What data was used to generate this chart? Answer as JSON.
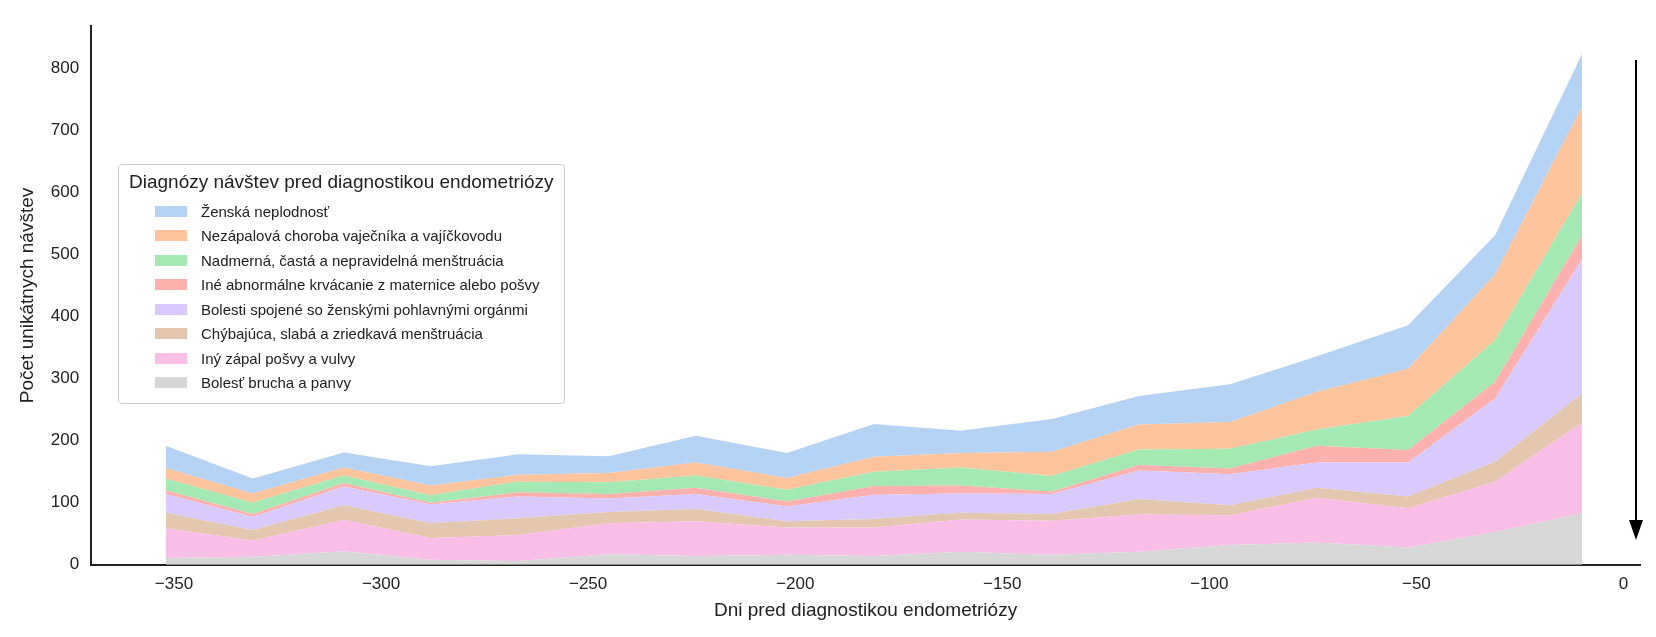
{
  "chart_data": {
    "type": "area",
    "stacked": true,
    "xlabel": "Dni pred diagnostikou endometriózy",
    "ylabel": "Počet unikátnych návštev",
    "legend_title": "Diagnózy návštev pred diagnostikou endometriózy",
    "legend": "left",
    "grid": false,
    "x": [
      -352,
      -331,
      -309,
      -288,
      -267,
      -245,
      -224,
      -202,
      -181,
      -160,
      -138,
      -117,
      -95,
      -74,
      -52,
      -31,
      -10
    ],
    "xlim": [
      -370,
      4
    ],
    "xticks": [
      -350,
      -300,
      -250,
      -200,
      -150,
      -100,
      -50,
      0
    ],
    "ylim": [
      0,
      868
    ],
    "yticks": [
      0,
      100,
      200,
      300,
      400,
      500,
      600,
      700,
      800
    ],
    "series": [
      {
        "name": "Bolesť brucha a panvy",
        "color": "#d7d7d7",
        "values": [
          11,
          13,
          22,
          8,
          6,
          17,
          14,
          16,
          14,
          21,
          16,
          21,
          32,
          36,
          28,
          53,
          83
        ]
      },
      {
        "name": "Iný zápal pošvy a vulvy",
        "color": "#f9bee8",
        "values": [
          48,
          26,
          50,
          35,
          42,
          50,
          56,
          44,
          46,
          52,
          55,
          60,
          48,
          72,
          63,
          81,
          146
        ]
      },
      {
        "name": "Chýbajúca, slabá a zriedkavá menštruácia",
        "color": "#e2c6ad",
        "values": [
          25,
          17,
          24,
          24,
          27,
          18,
          20,
          10,
          14,
          11,
          11,
          25,
          16,
          16,
          19,
          32,
          47
        ]
      },
      {
        "name": "Bolesti spojené so ženskými pohlavnými orgánmi",
        "color": "#d9c9fd",
        "values": [
          30,
          21,
          30,
          30,
          35,
          22,
          24,
          24,
          39,
          31,
          32,
          46,
          50,
          41,
          55,
          102,
          217
        ]
      },
      {
        "name": "Iné abnormálne krvácanie z maternice alebo pošvy",
        "color": "#fdb1ae",
        "values": [
          6,
          5,
          6,
          3,
          7,
          7,
          10,
          8,
          14,
          13,
          4,
          9,
          9,
          27,
          20,
          27,
          38
        ]
      },
      {
        "name": "Nadmerná, častá a nepravidelná menštruácia",
        "color": "#a4e9b4",
        "values": [
          19,
          18,
          12,
          12,
          17,
          19,
          20,
          19,
          23,
          29,
          25,
          25,
          32,
          26,
          55,
          67,
          68
        ]
      },
      {
        "name": "Nezápalová choroba vaječníka a vajíčkovodu",
        "color": "#fcc39d",
        "values": [
          17,
          15,
          13,
          16,
          11,
          15,
          21,
          19,
          24,
          23,
          39,
          40,
          43,
          61,
          76,
          106,
          139
        ]
      },
      {
        "name": "Ženská neplodnosť",
        "color": "#b4d2f4",
        "values": [
          36,
          24,
          24,
          31,
          33,
          27,
          43,
          40,
          53,
          36,
          53,
          46,
          61,
          57,
          70,
          63,
          85
        ]
      }
    ]
  }
}
